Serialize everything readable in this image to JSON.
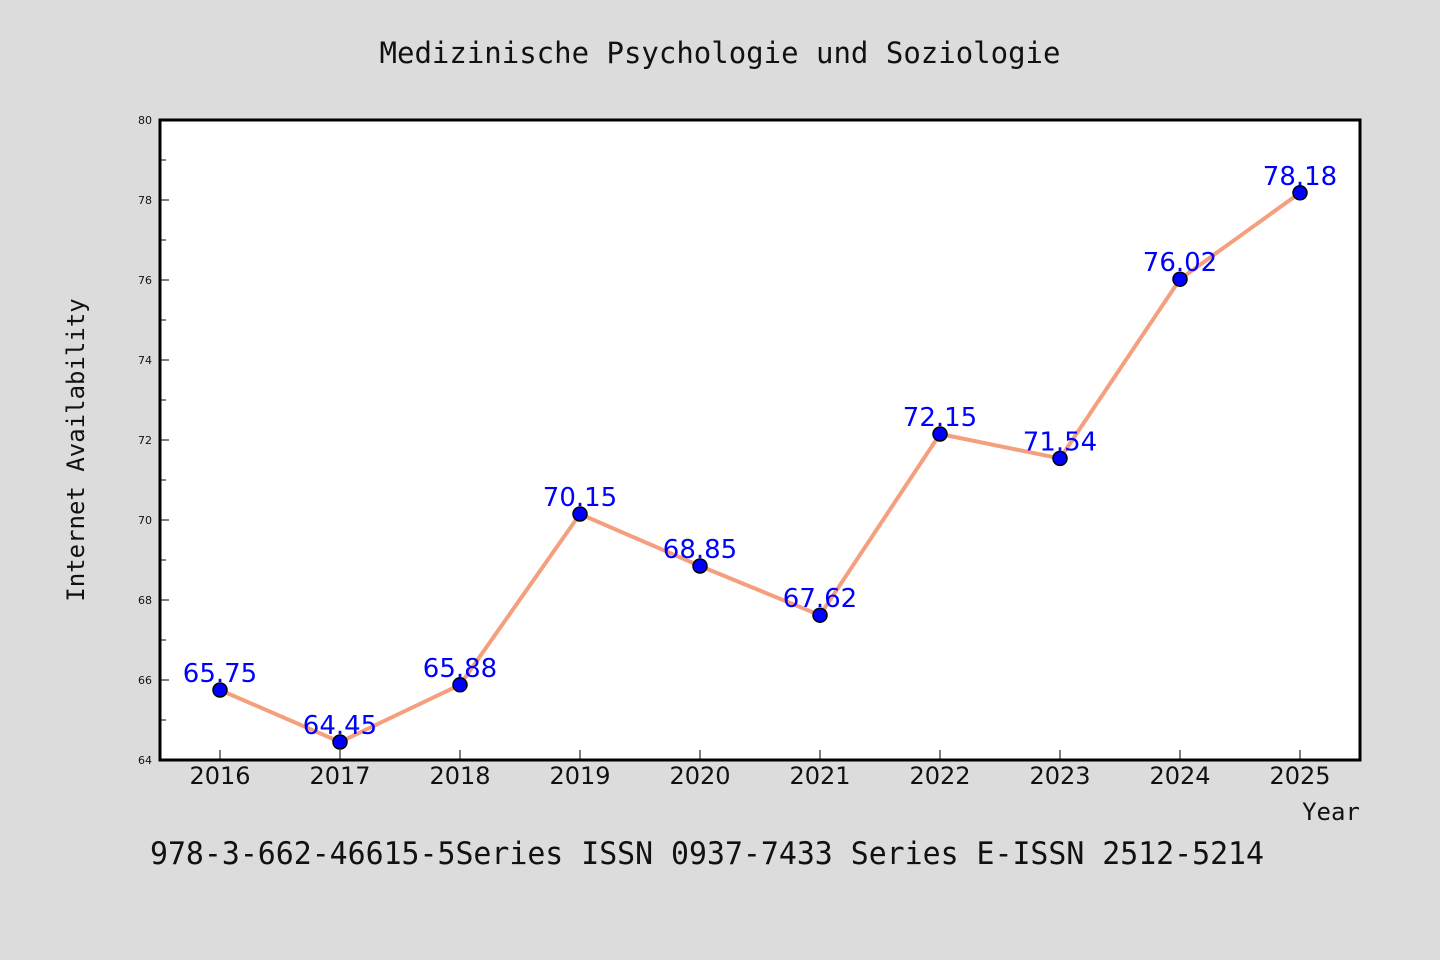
{
  "chart_data": {
    "type": "line",
    "title": "Medizinische Psychologie und Soziologie",
    "xlabel": "Year",
    "ylabel": "Internet Availability",
    "categories": [
      "2016",
      "2017",
      "2018",
      "2019",
      "2020",
      "2021",
      "2022",
      "2023",
      "2024",
      "2025"
    ],
    "series": [
      {
        "values": [
          65.75,
          64.45,
          65.88,
          70.15,
          68.85,
          67.62,
          72.15,
          71.54,
          76.02,
          78.18
        ],
        "data_labels": [
          "65.75",
          "64.45",
          "65.88",
          "70.15",
          "68.85",
          "67.62",
          "72.15",
          "71.54",
          "76.02",
          "78.18"
        ],
        "line_color": "#f4a07e",
        "marker_color": "#0000ff",
        "label_color": "#0000ff"
      }
    ],
    "ylim": [
      64,
      80
    ],
    "yticks": [
      64,
      66,
      68,
      70,
      72,
      74,
      76,
      78,
      80
    ],
    "ytick_labels": [
      "64",
      "66",
      "68",
      "70",
      "72",
      "74",
      "76",
      "78",
      "80"
    ],
    "grid": false,
    "legend": "none"
  },
  "footer": {
    "text": "978-3-662-46615-5Series ISSN 0937-7433 Series E-ISSN 2512-5214"
  },
  "colors": {
    "background": "#dcdcdc",
    "plot_background": "#ffffff",
    "axis": "#000000"
  }
}
